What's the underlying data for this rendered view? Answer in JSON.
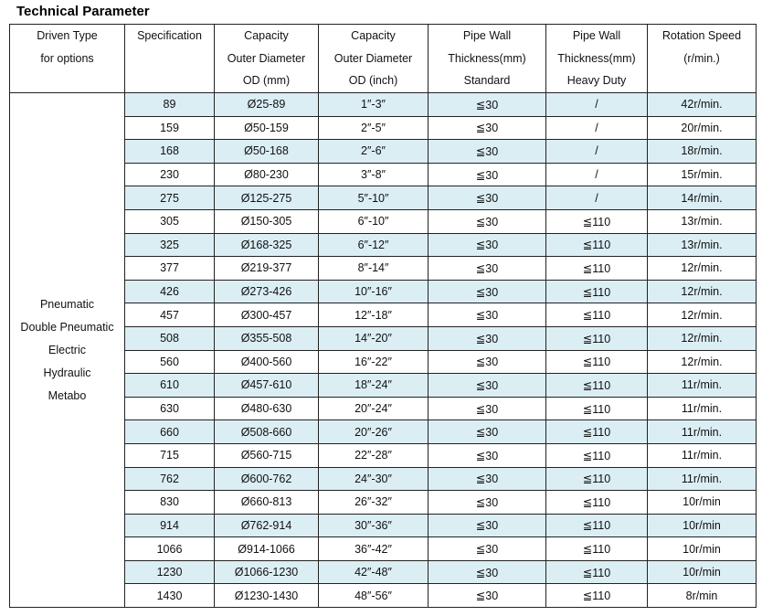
{
  "title": "Technical Parameter",
  "table": {
    "headers": [
      [
        "Driven Type",
        "for options"
      ],
      [
        "Specification"
      ],
      [
        "Capacity",
        "Outer Diameter",
        "OD (mm)"
      ],
      [
        "Capacity",
        "Outer Diameter",
        "OD (inch)"
      ],
      [
        "Pipe Wall",
        "Thickness(mm)",
        "Standard"
      ],
      [
        "Pipe Wall",
        "Thickness(mm)",
        "Heavy Duty"
      ],
      [
        "Rotation Speed",
        "(r/min.)"
      ]
    ],
    "driven_types": [
      "Pneumatic",
      "Double Pneumatic",
      "Electric",
      "Hydraulic",
      "Metabo"
    ],
    "rows": [
      [
        "89",
        "Ø25-89",
        "1″-3″",
        "≦30",
        "/",
        "42r/min."
      ],
      [
        "159",
        "Ø50-159",
        "2″-5″",
        "≦30",
        "/",
        "20r/min."
      ],
      [
        "168",
        "Ø50-168",
        "2″-6″",
        "≦30",
        "/",
        "18r/min."
      ],
      [
        "230",
        "Ø80-230",
        "3″-8″",
        "≦30",
        "/",
        "15r/min."
      ],
      [
        "275",
        "Ø125-275",
        "5″-10″",
        "≦30",
        "/",
        "14r/min."
      ],
      [
        "305",
        "Ø150-305",
        "6″-10″",
        "≦30",
        "≦110",
        "13r/min."
      ],
      [
        "325",
        "Ø168-325",
        "6″-12″",
        "≦30",
        "≦110",
        "13r/min."
      ],
      [
        "377",
        "Ø219-377",
        "8″-14″",
        "≦30",
        "≦110",
        "12r/min."
      ],
      [
        "426",
        "Ø273-426",
        "10″-16″",
        "≦30",
        "≦110",
        "12r/min."
      ],
      [
        "457",
        "Ø300-457",
        "12″-18″",
        "≦30",
        "≦110",
        "12r/min."
      ],
      [
        "508",
        "Ø355-508",
        "14″-20″",
        "≦30",
        "≦110",
        "12r/min."
      ],
      [
        "560",
        "Ø400-560",
        "16″-22″",
        "≦30",
        "≦110",
        "12r/min."
      ],
      [
        "610",
        "Ø457-610",
        "18″-24″",
        "≦30",
        "≦110",
        "11r/min."
      ],
      [
        "630",
        "Ø480-630",
        "20″-24″",
        "≦30",
        "≦110",
        "11r/min."
      ],
      [
        "660",
        "Ø508-660",
        "20″-26″",
        "≦30",
        "≦110",
        "11r/min."
      ],
      [
        "715",
        "Ø560-715",
        "22″-28″",
        "≦30",
        "≦110",
        "11r/min."
      ],
      [
        "762",
        "Ø600-762",
        "24″-30″",
        "≦30",
        "≦110",
        "11r/min."
      ],
      [
        "830",
        "Ø660-813",
        "26″-32″",
        "≦30",
        "≦110",
        "10r/min"
      ],
      [
        "914",
        "Ø762-914",
        "30″-36″",
        "≦30",
        "≦110",
        "10r/min"
      ],
      [
        "1066",
        "Ø914-1066",
        "36″-42″",
        "≦30",
        "≦110",
        "10r/min"
      ],
      [
        "1230",
        "Ø1066-1230",
        "42″-48″",
        "≦30",
        "≦110",
        "10r/min"
      ],
      [
        "1430",
        "Ø1230-1430",
        "48″-56″",
        "≦30",
        "≦110",
        "8r/min"
      ]
    ]
  }
}
